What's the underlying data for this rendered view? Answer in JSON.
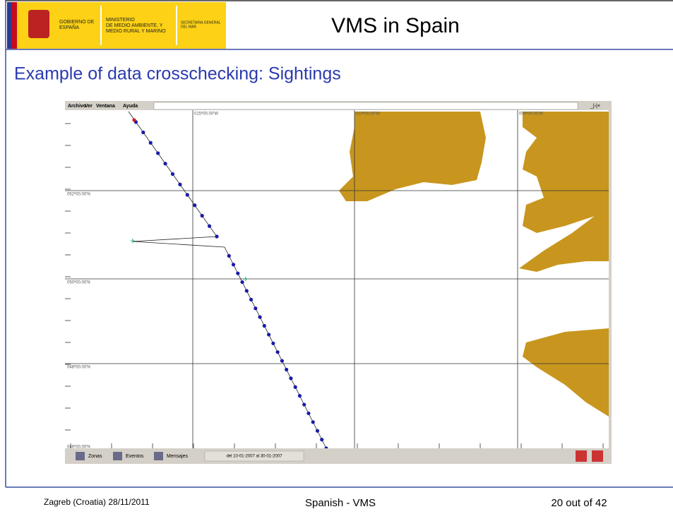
{
  "header": {
    "logo_gov": "GOBIERNO DE ESPAÑA",
    "logo_ministry_1": "MINISTERIO",
    "logo_ministry_2": "DE MEDIO AMBIENTE, Y",
    "logo_ministry_3": "MEDIO RURAL Y MARINO",
    "logo_secretary_1": "SECRETARIA GENERAL",
    "logo_secretary_2": "DEL MAR",
    "title": "VMS in Spain"
  },
  "subtitle": "Example of data crosschecking: Sightings",
  "app": {
    "menu": [
      "Archivo",
      "Ver",
      "Ventana",
      "Ayuda"
    ],
    "window_controls": "_|▫|×",
    "longitudes": [
      "015º00.00'W",
      "010º00.00'W",
      "005º00.00'W"
    ],
    "latitudes": [
      "052º00.00'N",
      "050º00.00'N",
      "048º00.00'N",
      "046º00.00'N"
    ],
    "toolbar": [
      "Zonas",
      "Eventos",
      "Mensajes"
    ],
    "date_range": "del 10-01-2007 al 30-01-2007"
  },
  "footer": {
    "left": "Zagreb (Croatia) 28/11/2011",
    "center": "Spanish - VMS",
    "right": "20 out of 42"
  }
}
